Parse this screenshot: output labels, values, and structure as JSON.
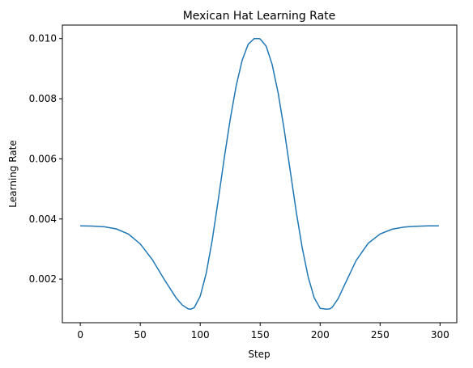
{
  "chart_data": {
    "type": "line",
    "title": "Mexican Hat Learning Rate",
    "xlabel": "Step",
    "ylabel": "Learning Rate",
    "xlim": [
      -14.95,
      313.95
    ],
    "ylim": [
      0.00055,
      0.01045
    ],
    "x_ticks": [
      0,
      50,
      100,
      150,
      200,
      250,
      300
    ],
    "x_tick_labels": [
      "0",
      "50",
      "100",
      "150",
      "200",
      "250",
      "300"
    ],
    "y_ticks": [
      0.002,
      0.004,
      0.006,
      0.008,
      0.01
    ],
    "y_tick_labels": [
      "0.002",
      "0.004",
      "0.006",
      "0.008",
      "0.010"
    ],
    "grid": false,
    "legend": "none",
    "series": [
      {
        "color": "#1f77b4",
        "x": [
          0,
          10,
          20,
          30,
          40,
          50,
          60,
          70,
          80,
          85,
          90,
          92,
          95,
          100,
          105,
          110,
          115,
          120,
          125,
          130,
          135,
          140,
          145,
          149,
          150,
          155,
          160,
          165,
          170,
          175,
          180,
          185,
          190,
          195,
          200,
          205,
          208,
          210,
          215,
          220,
          230,
          240,
          250,
          260,
          270,
          280,
          290,
          299
        ],
        "y": [
          0.00377,
          0.003765,
          0.00374,
          0.00367,
          0.0035,
          0.00317,
          0.00265,
          0.00199,
          0.00137,
          0.00114,
          0.00101,
          0.001,
          0.00105,
          0.00143,
          0.00219,
          0.00329,
          0.00462,
          0.00601,
          0.00731,
          0.00843,
          0.00928,
          0.00981,
          0.01,
          0.01,
          0.00999,
          0.00975,
          0.00914,
          0.00818,
          0.00697,
          0.00561,
          0.00425,
          0.00305,
          0.00207,
          0.00138,
          0.00103,
          0.001,
          0.00101,
          0.00106,
          0.00135,
          0.00178,
          0.00262,
          0.00319,
          0.0035,
          0.00366,
          0.00373,
          0.00376,
          0.00377,
          0.00377
        ]
      }
    ]
  }
}
